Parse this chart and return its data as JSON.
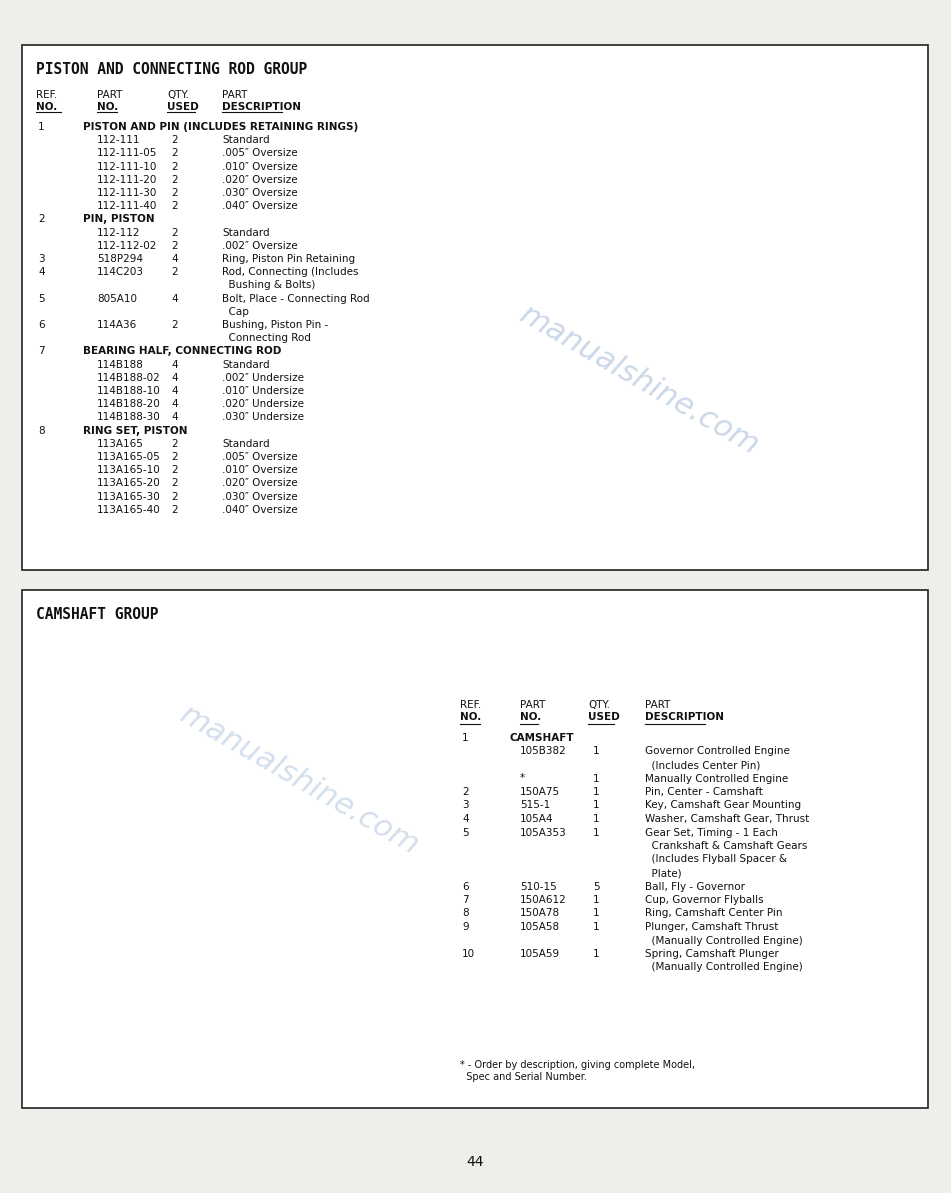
{
  "page_bg": "#f0eeea",
  "box_bg": "#ffffff",
  "border_color": "#222222",
  "text_color": "#111111",
  "page_number": "44",
  "watermark_color": "#a0b8d8",
  "watermark_text": "manualshinе.com",
  "section1_title": "PISTON AND CONNECTING ROD GROUP",
  "section1_headers": [
    "REF.",
    "PART",
    "QTY.",
    "PART"
  ],
  "section1_headers2": [
    "NO.",
    "NO.",
    "USED",
    "DESCRIPTION"
  ],
  "section1_rows": [
    [
      "1",
      "PISTON AND PIN (INCLUDES RETAINING RINGS)",
      "",
      ""
    ],
    [
      "",
      "112-111",
      "2",
      "Standard"
    ],
    [
      "",
      "112-111-05",
      "2",
      ".005″ Oversize"
    ],
    [
      "",
      "112-111-10",
      "2",
      ".010″ Oversize"
    ],
    [
      "",
      "112-111-20",
      "2",
      ".020″ Oversize"
    ],
    [
      "",
      "112-111-30",
      "2",
      ".030″ Oversize"
    ],
    [
      "",
      "112-111-40",
      "2",
      ".040″ Oversize"
    ],
    [
      "2",
      "PIN, PISTON",
      "",
      ""
    ],
    [
      "",
      "112-112",
      "2",
      "Standard"
    ],
    [
      "",
      "112-112-02",
      "2",
      ".002″ Oversize"
    ],
    [
      "3",
      "518P294",
      "4",
      "Ring, Piston Pin Retaining"
    ],
    [
      "4",
      "114C203",
      "2",
      "Rod, Connecting (Includes"
    ],
    [
      "",
      "",
      "",
      "  Bushing & Bolts)"
    ],
    [
      "5",
      "805A10",
      "4",
      "Bolt, Place - Connecting Rod"
    ],
    [
      "",
      "",
      "",
      "  Cap"
    ],
    [
      "6",
      "114A36",
      "2",
      "Bushing, Piston Pin -"
    ],
    [
      "",
      "",
      "",
      "  Connecting Rod"
    ],
    [
      "7",
      "BEARING HALF, CONNECTING ROD",
      "",
      ""
    ],
    [
      "",
      "114B188",
      "4",
      "Standard"
    ],
    [
      "",
      "114B188-02",
      "4",
      ".002″ Undersize"
    ],
    [
      "",
      "114B188-10",
      "4",
      ".010″ Undersize"
    ],
    [
      "",
      "114B188-20",
      "4",
      ".020″ Undersize"
    ],
    [
      "",
      "114B188-30",
      "4",
      ".030″ Undersize"
    ],
    [
      "8",
      "RING SET, PISTON",
      "",
      ""
    ],
    [
      "",
      "113A165",
      "2",
      "Standard"
    ],
    [
      "",
      "113A165-05",
      "2",
      ".005″ Oversize"
    ],
    [
      "",
      "113A165-10",
      "2",
      ".010″ Oversize"
    ],
    [
      "",
      "113A165-20",
      "2",
      ".020″ Oversize"
    ],
    [
      "",
      "113A165-30",
      "2",
      ".030″ Oversize"
    ],
    [
      "",
      "113A165-40",
      "2",
      ".040″ Oversize"
    ]
  ],
  "section2_title": "CAMSHAFT GROUP",
  "section2_headers": [
    "REF.",
    "PART",
    "QTY.",
    "PART"
  ],
  "section2_headers2": [
    "NO.",
    "NO.",
    "USED",
    "DESCRIPTION"
  ],
  "section2_rows": [
    [
      "1",
      "CAMSHAFT",
      "",
      ""
    ],
    [
      "",
      "105B382",
      "1",
      "Governor Controlled Engine"
    ],
    [
      "",
      "",
      "",
      "  (Includes Center Pin)"
    ],
    [
      "",
      "*",
      "1",
      "Manually Controlled Engine"
    ],
    [
      "2",
      "150A75",
      "1",
      "Pin, Center - Camshaft"
    ],
    [
      "3",
      "515-1",
      "1",
      "Key, Camshaft Gear Mounting"
    ],
    [
      "4",
      "105A4",
      "1",
      "Washer, Camshaft Gear, Thrust"
    ],
    [
      "5",
      "105A353",
      "1",
      "Gear Set, Timing - 1 Each"
    ],
    [
      "",
      "",
      "",
      "  Crankshaft & Camshaft Gears"
    ],
    [
      "",
      "",
      "",
      "  (Includes Flyball Spacer &"
    ],
    [
      "",
      "",
      "",
      "  Plate)"
    ],
    [
      "6",
      "510-15",
      "5",
      "Ball, Fly - Governor"
    ],
    [
      "7",
      "150A612",
      "1",
      "Cup, Governor Flyballs"
    ],
    [
      "8",
      "150A78",
      "1",
      "Ring, Camshaft Center Pin"
    ],
    [
      "9",
      "105A58",
      "1",
      "Plunger, Camshaft Thrust"
    ],
    [
      "",
      "",
      "",
      "  (Manually Controlled Engine)"
    ],
    [
      "10",
      "105A59",
      "1",
      "Spring, Camshaft Plunger"
    ],
    [
      "",
      "",
      "",
      "  (Manually Controlled Engine)"
    ]
  ],
  "section2_footnote": "* - Order by description, giving complete Model,\n  Spec and Serial Number."
}
